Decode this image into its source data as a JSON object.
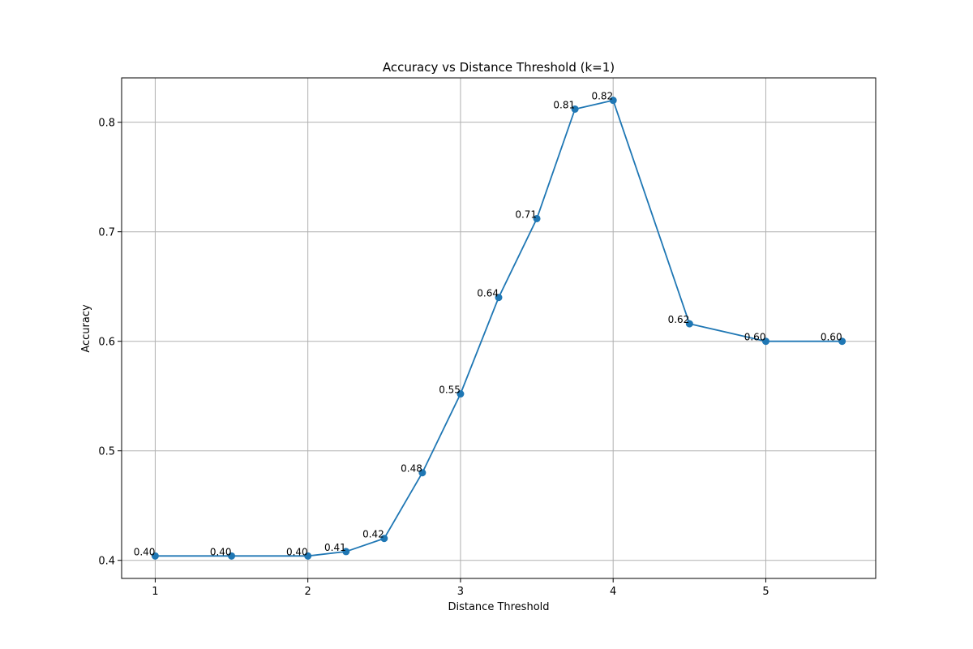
{
  "chart_data": {
    "type": "line",
    "title": "Accuracy vs Distance Threshold (k=1)",
    "xlabel": "Distance Threshold",
    "ylabel": "Accuracy",
    "xlim": [
      0.78,
      5.72
    ],
    "ylim": [
      0.3835,
      0.8405
    ],
    "x_ticks": [
      1,
      2,
      3,
      4,
      5
    ],
    "y_ticks": [
      0.4,
      0.5,
      0.6,
      0.7,
      0.8
    ],
    "x_tick_labels": [
      "1",
      "2",
      "3",
      "4",
      "5"
    ],
    "y_tick_labels": [
      "0.4",
      "0.5",
      "0.6",
      "0.7",
      "0.8"
    ],
    "grid": true,
    "legend": false,
    "color": "#1f77b4",
    "x": [
      1.0,
      1.5,
      2.0,
      2.25,
      2.5,
      2.75,
      3.0,
      3.25,
      3.5,
      3.75,
      4.0,
      4.5,
      5.0,
      5.5
    ],
    "y": [
      0.404,
      0.404,
      0.404,
      0.408,
      0.42,
      0.48,
      0.552,
      0.64,
      0.712,
      0.812,
      0.82,
      0.616,
      0.6,
      0.6
    ],
    "data_labels": [
      "0.40",
      "0.40",
      "0.40",
      "0.41",
      "0.42",
      "0.48",
      "0.55",
      "0.64",
      "0.71",
      "0.81",
      "0.82",
      "0.62",
      "0.60",
      "0.60"
    ]
  }
}
